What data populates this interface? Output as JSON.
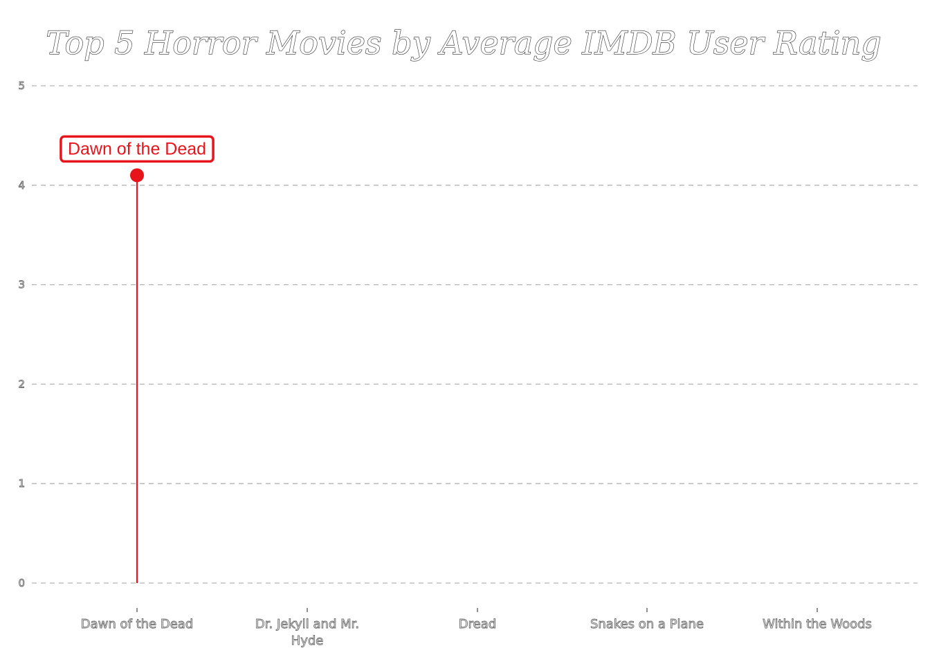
{
  "chart_data": {
    "type": "lollipop",
    "title": "Top 5 Horror Movies by Average IMDB User Rating",
    "xlabel": "",
    "ylabel": "",
    "categories": [
      "Dawn of the Dead",
      "Dr. Jekyll and Mr. Hyde",
      "Dread",
      "Snakes on a Plane",
      "Within the Woods"
    ],
    "values": [
      4.1,
      null,
      null,
      null,
      null
    ],
    "ylim": [
      0,
      5
    ],
    "yticks": [
      "0",
      "1",
      "2",
      "3",
      "4",
      "5"
    ],
    "grid": true,
    "highlight": {
      "category": "Dawn of the Dead",
      "label": "Dawn of the Dead",
      "color": "#e8141b"
    }
  }
}
